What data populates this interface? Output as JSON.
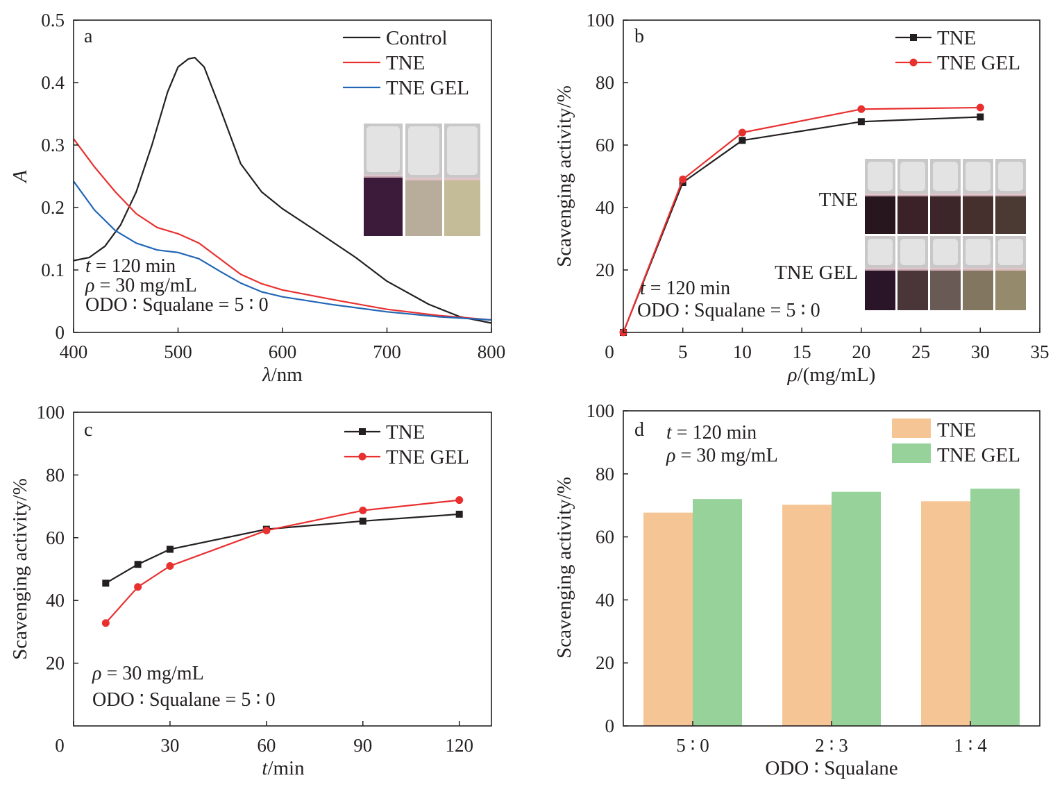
{
  "chart_data": [
    {
      "panel": "a",
      "type": "line",
      "xlabel_var": "λ",
      "xlabel_unit": "/nm",
      "ylabel": "A",
      "xlim": [
        400,
        800
      ],
      "ylim": [
        0,
        0.5
      ],
      "xticks": [
        "400",
        "500",
        "600",
        "700",
        "800"
      ],
      "yticks": [
        "0",
        "0.1",
        "0.2",
        "0.3",
        "0.4",
        "0.5"
      ],
      "legend_position": "top-right",
      "series": [
        {
          "name": "Control",
          "color": "#231f20",
          "x": [
            400,
            415,
            430,
            445,
            460,
            475,
            490,
            500,
            510,
            516,
            525,
            540,
            560,
            580,
            600,
            630,
            670,
            700,
            740,
            770,
            800
          ],
          "y": [
            0.115,
            0.12,
            0.138,
            0.172,
            0.225,
            0.3,
            0.385,
            0.425,
            0.438,
            0.44,
            0.425,
            0.36,
            0.27,
            0.225,
            0.198,
            0.165,
            0.12,
            0.082,
            0.045,
            0.025,
            0.015
          ]
        },
        {
          "name": "TNE",
          "color": "#e8302f",
          "x": [
            400,
            420,
            440,
            460,
            480,
            500,
            520,
            540,
            560,
            580,
            600,
            650,
            700,
            750,
            800
          ],
          "y": [
            0.31,
            0.265,
            0.225,
            0.19,
            0.168,
            0.158,
            0.143,
            0.118,
            0.093,
            0.078,
            0.068,
            0.052,
            0.037,
            0.027,
            0.02
          ]
        },
        {
          "name": "TNE GEL",
          "color": "#2266b5",
          "x": [
            400,
            420,
            440,
            460,
            480,
            500,
            520,
            540,
            560,
            580,
            600,
            650,
            700,
            750,
            800
          ],
          "y": [
            0.242,
            0.196,
            0.163,
            0.143,
            0.132,
            0.128,
            0.118,
            0.098,
            0.079,
            0.065,
            0.057,
            0.044,
            0.033,
            0.025,
            0.02
          ]
        }
      ],
      "notes": [
        {
          "var": "t",
          "text": " = 120 min"
        },
        {
          "var": "ρ",
          "text": " = 30 mg/mL"
        },
        {
          "var": "",
          "text": "ODO ∶ Squalane = 5 ∶ 0"
        }
      ]
    },
    {
      "panel": "b",
      "type": "line",
      "xlabel_var": "ρ",
      "xlabel_unit": "/(mg/mL)",
      "ylabel": "Scavenging activity/%",
      "xlim": [
        0,
        35
      ],
      "ylim": [
        0,
        100
      ],
      "xticks": [
        "0",
        "5",
        "10",
        "15",
        "20",
        "25",
        "30",
        "35"
      ],
      "yticks": [
        "20",
        "40",
        "60",
        "80",
        "100"
      ],
      "legend_position": "top-right",
      "series": [
        {
          "name": "TNE",
          "color": "#231f20",
          "marker": "square",
          "x": [
            0,
            5,
            10,
            20,
            30
          ],
          "y": [
            0,
            48,
            61.5,
            67.5,
            69
          ]
        },
        {
          "name": "TNE GEL",
          "color": "#e8302f",
          "marker": "circle",
          "x": [
            0,
            5,
            10,
            20,
            30
          ],
          "y": [
            0,
            49,
            64,
            71.5,
            72
          ]
        }
      ],
      "photo_labels": [
        "TNE",
        "TNE GEL"
      ],
      "notes": [
        {
          "var": "t",
          "text": " = 120 min"
        },
        {
          "var": "",
          "text": "ODO ∶ Squalane = 5 ∶ 0"
        }
      ]
    },
    {
      "panel": "c",
      "type": "line",
      "xlabel_var": "t",
      "xlabel_unit": "/min",
      "ylabel": "Scavenging activity/%",
      "xlim": [
        0,
        130
      ],
      "ylim": [
        0,
        100
      ],
      "xticks": [
        "0",
        "30",
        "60",
        "90",
        "120"
      ],
      "yticks": [
        "20",
        "40",
        "60",
        "80",
        "100"
      ],
      "legend_position": "top-right",
      "series": [
        {
          "name": "TNE",
          "color": "#231f20",
          "marker": "square",
          "x": [
            10,
            20,
            30,
            60,
            90,
            120
          ],
          "y": [
            45.5,
            51.5,
            56.3,
            62.7,
            65.3,
            67.5
          ]
        },
        {
          "name": "TNE GEL",
          "color": "#e8302f",
          "marker": "circle",
          "x": [
            10,
            20,
            30,
            60,
            90,
            120
          ],
          "y": [
            32.8,
            44.3,
            51,
            62.3,
            68.7,
            72
          ]
        }
      ],
      "notes": [
        {
          "var": "ρ",
          "text": " = 30 mg/mL"
        },
        {
          "var": "",
          "text": "ODO ∶ Squalane = 5 ∶ 0"
        }
      ]
    },
    {
      "panel": "d",
      "type": "bar",
      "xlabel_var": "",
      "xlabel_unit": "ODO ∶ Squalane",
      "ylabel": "Scavenging activity/%",
      "ylim": [
        0,
        100
      ],
      "yticks": [
        "0",
        "20",
        "40",
        "60",
        "80",
        "100"
      ],
      "categories": [
        "5 ∶ 0",
        "2 ∶ 3",
        "1 ∶ 4"
      ],
      "legend_position": "top-right",
      "series": [
        {
          "name": "TNE",
          "color": "#f5c596",
          "values": [
            67.7,
            70.2,
            71.3
          ]
        },
        {
          "name": "TNE GEL",
          "color": "#97d29b",
          "values": [
            72,
            74.3,
            75.3
          ]
        }
      ],
      "notes": [
        {
          "var": "t",
          "text": " = 120 min"
        },
        {
          "var": "ρ",
          "text": " = 30 mg/mL"
        }
      ]
    }
  ]
}
